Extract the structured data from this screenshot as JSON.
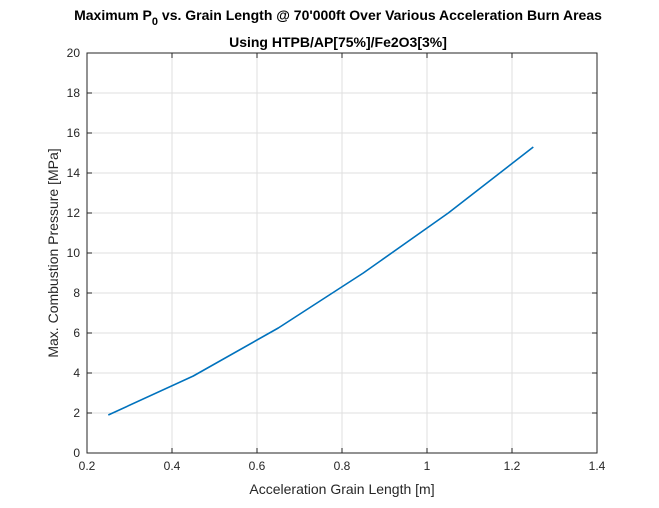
{
  "chart_data": {
    "type": "line",
    "title_line1_prefix": "Maximum P",
    "title_line1_subscript": "0",
    "title_line1_suffix": " vs. Grain Length @ 70'000ft Over Various Acceleration Burn Areas",
    "title_line2": "Using HTPB/AP[75%]/Fe2O3[3%]",
    "xlabel": "Acceleration Grain Length [m]",
    "ylabel": "Max. Combustion Pressure [MPa]",
    "xlim": [
      0.2,
      1.4
    ],
    "ylim": [
      0,
      20
    ],
    "xticks": [
      "0.2",
      "0.4",
      "0.6",
      "0.8",
      "1",
      "1.2",
      "1.4"
    ],
    "yticks": [
      "0",
      "2",
      "4",
      "6",
      "8",
      "10",
      "12",
      "14",
      "16",
      "18",
      "20"
    ],
    "grid": true,
    "line_color": "#0072bd",
    "series": [
      {
        "x": [
          0.25,
          0.45,
          0.65,
          0.85,
          1.05,
          1.25
        ],
        "values": [
          1.9,
          3.85,
          6.25,
          9.0,
          12.0,
          15.3
        ]
      }
    ]
  }
}
